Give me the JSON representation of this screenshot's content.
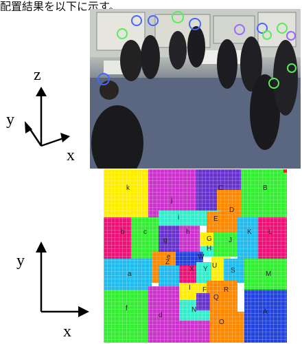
{
  "caption": "配置結果を以下に示す。",
  "axes_top": {
    "z": "z",
    "y": "y",
    "x": "x"
  },
  "axes_bottom": {
    "y": "y",
    "x": "x"
  },
  "colors": {
    "yellow": "#ffee00",
    "magenta": "#cc33cc",
    "purple": "#6633cc",
    "green": "#33ee33",
    "red": "#ee1177",
    "cyan": "#22bbee",
    "blue": "#2244dd",
    "orange": "#ff8800",
    "teal": "#33eecc",
    "detection_green": "#55ee55",
    "detection_blue": "#4466ff",
    "detection_violet": "#9966ff"
  },
  "grid": {
    "labels": [
      "k",
      "j",
      "C",
      "B",
      "D",
      "i",
      "E",
      "b",
      "c",
      "h",
      "G",
      "J",
      "K",
      "L",
      "g",
      "H",
      "e",
      "Z",
      "W",
      "a",
      "X",
      "Y",
      "U",
      "S",
      "M",
      "I",
      "F",
      "Q",
      "R",
      "f",
      "d",
      "N",
      "O",
      "A"
    ]
  }
}
